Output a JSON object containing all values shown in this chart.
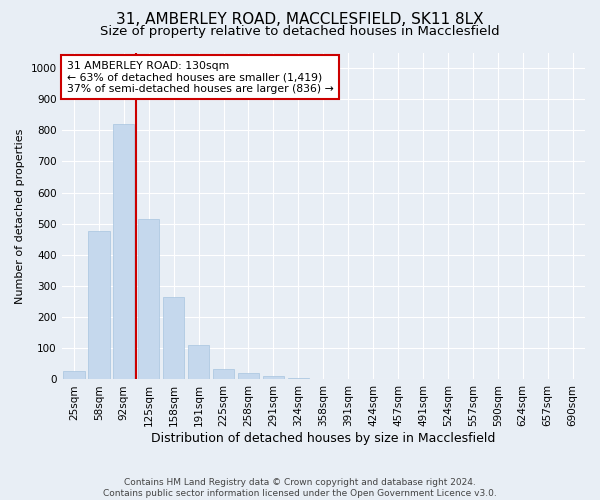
{
  "title_line1": "31, AMBERLEY ROAD, MACCLESFIELD, SK11 8LX",
  "title_line2": "Size of property relative to detached houses in Macclesfield",
  "xlabel": "Distribution of detached houses by size in Macclesfield",
  "ylabel": "Number of detached properties",
  "footer_line1": "Contains HM Land Registry data © Crown copyright and database right 2024.",
  "footer_line2": "Contains public sector information licensed under the Open Government Licence v3.0.",
  "categories": [
    "25sqm",
    "58sqm",
    "92sqm",
    "125sqm",
    "158sqm",
    "191sqm",
    "225sqm",
    "258sqm",
    "291sqm",
    "324sqm",
    "358sqm",
    "391sqm",
    "424sqm",
    "457sqm",
    "491sqm",
    "524sqm",
    "557sqm",
    "590sqm",
    "624sqm",
    "657sqm",
    "690sqm"
  ],
  "values": [
    28,
    478,
    820,
    515,
    265,
    110,
    35,
    20,
    10,
    6,
    0,
    0,
    0,
    0,
    0,
    0,
    0,
    0,
    0,
    0,
    0
  ],
  "bar_color": "#c5d8ed",
  "bar_edge_color": "#a8c4df",
  "vline_color": "#cc0000",
  "annotation_title": "31 AMBERLEY ROAD: 130sqm",
  "annotation_line2": "← 63% of detached houses are smaller (1,419)",
  "annotation_line3": "37% of semi-detached houses are larger (836) →",
  "annotation_box_facecolor": "#ffffff",
  "annotation_box_edgecolor": "#cc0000",
  "ylim": [
    0,
    1050
  ],
  "yticks": [
    0,
    100,
    200,
    300,
    400,
    500,
    600,
    700,
    800,
    900,
    1000
  ],
  "background_color": "#e8eef5",
  "grid_color": "#ffffff",
  "title_fontsize": 11,
  "subtitle_fontsize": 9.5,
  "ylabel_fontsize": 8,
  "xlabel_fontsize": 9,
  "tick_fontsize": 7.5,
  "footer_fontsize": 6.5,
  "annotation_fontsize": 7.8
}
